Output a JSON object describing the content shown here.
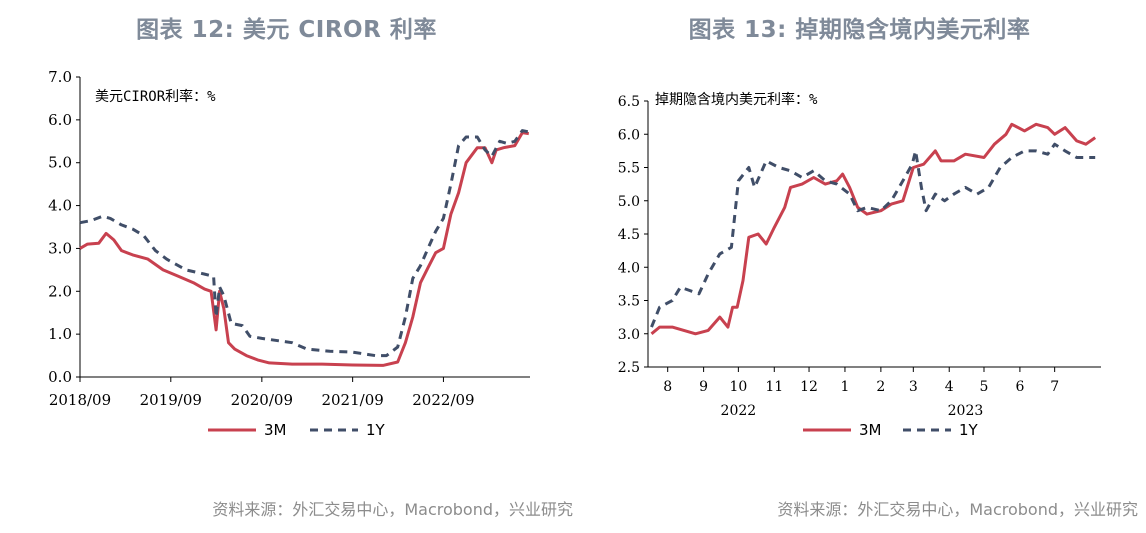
{
  "colors": {
    "series_3m": "#c8414f",
    "series_1y": "#404e68",
    "title": "#7f8a99",
    "source": "#8c8c8c"
  },
  "left": {
    "title": "图表 12: 美元 CIROR 利率",
    "source": "资料来源：外汇交易中心，Macrobond，兴业研究"
  },
  "right": {
    "title": "图表 13: 掉期隐含境内美元利率",
    "source": "资料来源：外汇交易中心，Macrobond，兴业研究"
  },
  "chart_data": [
    {
      "type": "line",
      "title": "美元CIROR利率：%",
      "x_type": "date",
      "xlim": [
        "2018-09-01",
        "2023-08-15"
      ],
      "ylim": [
        0,
        7
      ],
      "yticks": [
        "0.0",
        "1.0",
        "2.0",
        "3.0",
        "4.0",
        "5.0",
        "6.0",
        "7.0"
      ],
      "xticks": [
        {
          "date": "2018-09-01",
          "label": "2018/09"
        },
        {
          "date": "2019-09-01",
          "label": "2019/09"
        },
        {
          "date": "2020-09-01",
          "label": "2020/09"
        },
        {
          "date": "2021-09-01",
          "label": "2021/09"
        },
        {
          "date": "2022-09-01",
          "label": "2022/09"
        }
      ],
      "grid": false,
      "legend_position": "bottom",
      "series": [
        {
          "name": "3M",
          "points": [
            [
              "2018-09-01",
              3.0
            ],
            [
              "2018-10-01",
              3.1
            ],
            [
              "2018-11-15",
              3.12
            ],
            [
              "2018-12-15",
              3.35
            ],
            [
              "2019-01-15",
              3.2
            ],
            [
              "2019-02-15",
              2.95
            ],
            [
              "2019-04-01",
              2.85
            ],
            [
              "2019-06-01",
              2.75
            ],
            [
              "2019-08-01",
              2.5
            ],
            [
              "2019-10-01",
              2.35
            ],
            [
              "2019-12-01",
              2.2
            ],
            [
              "2020-01-15",
              2.05
            ],
            [
              "2020-02-10",
              2.0
            ],
            [
              "2020-03-01",
              1.1
            ],
            [
              "2020-03-15",
              2.0
            ],
            [
              "2020-04-01",
              1.6
            ],
            [
              "2020-04-20",
              0.8
            ],
            [
              "2020-05-15",
              0.65
            ],
            [
              "2020-07-01",
              0.5
            ],
            [
              "2020-08-15",
              0.4
            ],
            [
              "2020-10-01",
              0.33
            ],
            [
              "2021-01-01",
              0.3
            ],
            [
              "2021-05-01",
              0.3
            ],
            [
              "2021-09-01",
              0.28
            ],
            [
              "2022-01-01",
              0.27
            ],
            [
              "2022-03-01",
              0.35
            ],
            [
              "2022-04-01",
              0.8
            ],
            [
              "2022-05-01",
              1.4
            ],
            [
              "2022-06-01",
              2.2
            ],
            [
              "2022-07-01",
              2.55
            ],
            [
              "2022-08-01",
              2.9
            ],
            [
              "2022-09-01",
              3.0
            ],
            [
              "2022-10-01",
              3.8
            ],
            [
              "2022-11-01",
              4.3
            ],
            [
              "2022-12-01",
              5.0
            ],
            [
              "2023-01-15",
              5.35
            ],
            [
              "2023-02-15",
              5.35
            ],
            [
              "2023-03-15",
              5.0
            ],
            [
              "2023-04-01",
              5.3
            ],
            [
              "2023-05-01",
              5.35
            ],
            [
              "2023-06-15",
              5.4
            ],
            [
              "2023-07-15",
              5.7
            ],
            [
              "2023-08-10",
              5.68
            ]
          ]
        },
        {
          "name": "1Y",
          "points": [
            [
              "2018-09-01",
              3.6
            ],
            [
              "2018-10-15",
              3.65
            ],
            [
              "2018-12-01",
              3.75
            ],
            [
              "2019-01-01",
              3.7
            ],
            [
              "2019-02-15",
              3.55
            ],
            [
              "2019-04-01",
              3.45
            ],
            [
              "2019-05-15",
              3.3
            ],
            [
              "2019-07-01",
              2.95
            ],
            [
              "2019-08-15",
              2.75
            ],
            [
              "2019-11-01",
              2.5
            ],
            [
              "2020-01-15",
              2.4
            ],
            [
              "2020-02-20",
              2.35
            ],
            [
              "2020-03-01",
              1.4
            ],
            [
              "2020-03-15",
              2.1
            ],
            [
              "2020-04-01",
              1.9
            ],
            [
              "2020-05-01",
              1.25
            ],
            [
              "2020-06-15",
              1.2
            ],
            [
              "2020-07-15",
              0.95
            ],
            [
              "2020-09-01",
              0.9
            ],
            [
              "2021-01-01",
              0.8
            ],
            [
              "2021-03-01",
              0.65
            ],
            [
              "2021-06-01",
              0.6
            ],
            [
              "2021-09-01",
              0.58
            ],
            [
              "2021-12-01",
              0.5
            ],
            [
              "2022-01-15",
              0.5
            ],
            [
              "2022-03-01",
              0.7
            ],
            [
              "2022-04-01",
              1.4
            ],
            [
              "2022-05-01",
              2.3
            ],
            [
              "2022-06-01",
              2.6
            ],
            [
              "2022-07-01",
              3.0
            ],
            [
              "2022-08-01",
              3.4
            ],
            [
              "2022-09-01",
              3.7
            ],
            [
              "2022-10-01",
              4.5
            ],
            [
              "2022-11-01",
              5.4
            ],
            [
              "2022-12-01",
              5.6
            ],
            [
              "2023-01-15",
              5.6
            ],
            [
              "2023-02-15",
              5.3
            ],
            [
              "2023-03-15",
              5.15
            ],
            [
              "2023-04-15",
              5.5
            ],
            [
              "2023-05-15",
              5.45
            ],
            [
              "2023-06-15",
              5.5
            ],
            [
              "2023-07-15",
              5.75
            ],
            [
              "2023-08-10",
              5.72
            ]
          ]
        }
      ]
    },
    {
      "type": "line",
      "title": "掉期隐含境内美元利率：%",
      "x_type": "date",
      "xlim": [
        "2022-07-15",
        "2023-08-10"
      ],
      "ylim": [
        2.5,
        6.5
      ],
      "yticks": [
        "2.5",
        "3.0",
        "3.5",
        "4.0",
        "4.5",
        "5.0",
        "5.5",
        "6.0",
        "6.5"
      ],
      "xticks": [
        {
          "date": "2022-08-01",
          "label": "8"
        },
        {
          "date": "2022-09-01",
          "label": "9"
        },
        {
          "date": "2022-10-01",
          "label": "10"
        },
        {
          "date": "2022-11-01",
          "label": "11"
        },
        {
          "date": "2022-12-01",
          "label": "12"
        },
        {
          "date": "2023-01-01",
          "label": "1"
        },
        {
          "date": "2023-02-01",
          "label": "2"
        },
        {
          "date": "2023-03-01",
          "label": "3"
        },
        {
          "date": "2023-04-01",
          "label": "4"
        },
        {
          "date": "2023-05-01",
          "label": "5"
        },
        {
          "date": "2023-06-01",
          "label": "6"
        },
        {
          "date": "2023-07-01",
          "label": "7"
        }
      ],
      "year_labels": [
        {
          "date": "2022-10-01",
          "label": "2022"
        },
        {
          "date": "2023-04-15",
          "label": "2023"
        }
      ],
      "grid": false,
      "legend_position": "bottom",
      "series": [
        {
          "name": "3M",
          "points": [
            [
              "2022-07-18",
              3.0
            ],
            [
              "2022-07-25",
              3.1
            ],
            [
              "2022-08-05",
              3.1
            ],
            [
              "2022-08-15",
              3.05
            ],
            [
              "2022-08-25",
              3.0
            ],
            [
              "2022-09-05",
              3.05
            ],
            [
              "2022-09-15",
              3.25
            ],
            [
              "2022-09-22",
              3.1
            ],
            [
              "2022-09-26",
              3.4
            ],
            [
              "2022-09-30",
              3.4
            ],
            [
              "2022-10-05",
              3.8
            ],
            [
              "2022-10-10",
              4.45
            ],
            [
              "2022-10-18",
              4.5
            ],
            [
              "2022-10-25",
              4.35
            ],
            [
              "2022-11-01",
              4.6
            ],
            [
              "2022-11-10",
              4.9
            ],
            [
              "2022-11-15",
              5.2
            ],
            [
              "2022-11-25",
              5.25
            ],
            [
              "2022-12-05",
              5.35
            ],
            [
              "2022-12-15",
              5.25
            ],
            [
              "2022-12-25",
              5.3
            ],
            [
              "2022-12-30",
              5.4
            ],
            [
              "2023-01-05",
              5.2
            ],
            [
              "2023-01-12",
              4.9
            ],
            [
              "2023-01-20",
              4.8
            ],
            [
              "2023-02-01",
              4.85
            ],
            [
              "2023-02-10",
              4.95
            ],
            [
              "2023-02-20",
              5.0
            ],
            [
              "2023-03-01",
              5.5
            ],
            [
              "2023-03-10",
              5.55
            ],
            [
              "2023-03-20",
              5.75
            ],
            [
              "2023-03-25",
              5.6
            ],
            [
              "2023-04-05",
              5.6
            ],
            [
              "2023-04-15",
              5.7
            ],
            [
              "2023-05-01",
              5.65
            ],
            [
              "2023-05-10",
              5.85
            ],
            [
              "2023-05-20",
              6.0
            ],
            [
              "2023-05-25",
              6.15
            ],
            [
              "2023-06-05",
              6.05
            ],
            [
              "2023-06-15",
              6.15
            ],
            [
              "2023-06-25",
              6.1
            ],
            [
              "2023-07-01",
              6.0
            ],
            [
              "2023-07-10",
              6.1
            ],
            [
              "2023-07-20",
              5.9
            ],
            [
              "2023-07-28",
              5.85
            ],
            [
              "2023-08-05",
              5.95
            ]
          ]
        },
        {
          "name": "1Y",
          "points": [
            [
              "2022-07-18",
              3.1
            ],
            [
              "2022-07-25",
              3.4
            ],
            [
              "2022-08-05",
              3.5
            ],
            [
              "2022-08-12",
              3.7
            ],
            [
              "2022-08-20",
              3.65
            ],
            [
              "2022-08-28",
              3.6
            ],
            [
              "2022-09-05",
              3.9
            ],
            [
              "2022-09-15",
              4.2
            ],
            [
              "2022-09-25",
              4.3
            ],
            [
              "2022-10-01",
              5.3
            ],
            [
              "2022-10-10",
              5.5
            ],
            [
              "2022-10-15",
              5.2
            ],
            [
              "2022-10-25",
              5.6
            ],
            [
              "2022-11-05",
              5.5
            ],
            [
              "2022-11-15",
              5.45
            ],
            [
              "2022-11-25",
              5.35
            ],
            [
              "2022-12-05",
              5.45
            ],
            [
              "2022-12-15",
              5.3
            ],
            [
              "2022-12-25",
              5.25
            ],
            [
              "2023-01-05",
              5.1
            ],
            [
              "2023-01-12",
              4.85
            ],
            [
              "2023-01-20",
              4.9
            ],
            [
              "2023-02-01",
              4.85
            ],
            [
              "2023-02-10",
              5.0
            ],
            [
              "2023-02-20",
              5.3
            ],
            [
              "2023-02-28",
              5.55
            ],
            [
              "2023-03-03",
              5.75
            ],
            [
              "2023-03-08",
              5.2
            ],
            [
              "2023-03-12",
              4.85
            ],
            [
              "2023-03-20",
              5.1
            ],
            [
              "2023-03-28",
              5.0
            ],
            [
              "2023-04-05",
              5.1
            ],
            [
              "2023-04-15",
              5.2
            ],
            [
              "2023-04-25",
              5.1
            ],
            [
              "2023-05-05",
              5.2
            ],
            [
              "2023-05-15",
              5.5
            ],
            [
              "2023-05-25",
              5.65
            ],
            [
              "2023-06-05",
              5.75
            ],
            [
              "2023-06-15",
              5.75
            ],
            [
              "2023-06-25",
              5.7
            ],
            [
              "2023-07-01",
              5.85
            ],
            [
              "2023-07-10",
              5.75
            ],
            [
              "2023-07-20",
              5.65
            ],
            [
              "2023-08-05",
              5.65
            ]
          ]
        }
      ]
    }
  ]
}
